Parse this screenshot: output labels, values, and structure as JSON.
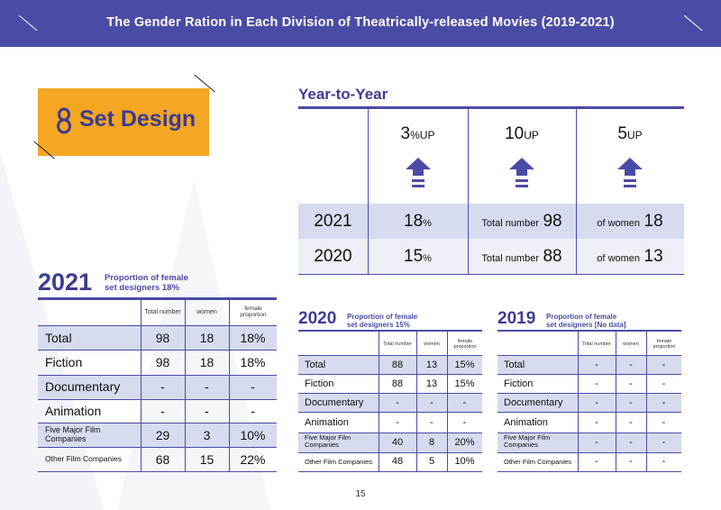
{
  "header": {
    "title": "The Gender Ration in Each Division of Theatrically-released Movies (2019-2021)"
  },
  "section": {
    "number": "8",
    "title": "Set Design"
  },
  "year_to_year": {
    "title": "Year-to-Year",
    "changes": [
      {
        "value": "3",
        "unit": "%UP"
      },
      {
        "value": "10",
        "unit": "UP"
      },
      {
        "value": "5",
        "unit": "UP"
      }
    ],
    "rows": [
      {
        "year": "2021",
        "proportion": "18",
        "proportion_unit": "%",
        "total_label": "Total number",
        "total": "98",
        "women_label": "of women",
        "women": "18"
      },
      {
        "year": "2020",
        "proportion": "15",
        "proportion_unit": "%",
        "total_label": "Total number",
        "total": "88",
        "women_label": "of women",
        "women": "13"
      }
    ]
  },
  "table_columns": [
    "Total number",
    "women",
    "female proportion"
  ],
  "table_2021": {
    "year": "2021",
    "subtitle_line1": "Proportion of female",
    "subtitle_line2": "set designers 18%",
    "rows": [
      {
        "label": "Total",
        "total": "98",
        "women": "18",
        "proportion": "18%"
      },
      {
        "label": "Fiction",
        "total": "98",
        "women": "18",
        "proportion": "18%"
      },
      {
        "label": "Documentary",
        "total": "-",
        "women": "-",
        "proportion": "-"
      },
      {
        "label": "Animation",
        "total": "-",
        "women": "-",
        "proportion": "-"
      },
      {
        "label": "Five Major Film Companies",
        "total": "29",
        "women": "3",
        "proportion": "10%"
      },
      {
        "label": "Other Film Companies",
        "total": "68",
        "women": "15",
        "proportion": "22%"
      }
    ]
  },
  "table_2020": {
    "year": "2020",
    "subtitle_line1": "Proportion of female",
    "subtitle_line2": "set designers 15%",
    "rows": [
      {
        "label": "Total",
        "total": "88",
        "women": "13",
        "proportion": "15%"
      },
      {
        "label": "Fiction",
        "total": "88",
        "women": "13",
        "proportion": "15%"
      },
      {
        "label": "Documentary",
        "total": "-",
        "women": "-",
        "proportion": "-"
      },
      {
        "label": "Animation",
        "total": "-",
        "women": "-",
        "proportion": "-"
      },
      {
        "label": "Five Major Film Companies",
        "total": "40",
        "women": "8",
        "proportion": "20%"
      },
      {
        "label": "Other Film Companies",
        "total": "48",
        "women": "5",
        "proportion": "10%"
      }
    ]
  },
  "table_2019": {
    "year": "2019",
    "subtitle_line1": "Proportion of female",
    "subtitle_line2": "set designers [No data]",
    "rows": [
      {
        "label": "Total",
        "total": "-",
        "women": "-",
        "proportion": "-"
      },
      {
        "label": "Fiction",
        "total": "-",
        "women": "-",
        "proportion": "-"
      },
      {
        "label": "Documentary",
        "total": "-",
        "women": "-",
        "proportion": "-"
      },
      {
        "label": "Animation",
        "total": "-",
        "women": "-",
        "proportion": "-"
      },
      {
        "label": "Five Major Film Companies",
        "total": "-",
        "women": "-",
        "proportion": "-"
      },
      {
        "label": "Other Film Companies",
        "total": "-",
        "women": "-",
        "proportion": "-"
      }
    ]
  },
  "page_number": "15",
  "colors": {
    "primary": "#4b4ba6",
    "accent": "#f5a623",
    "band": "#d6dcee",
    "ink": "#3c3c90"
  }
}
